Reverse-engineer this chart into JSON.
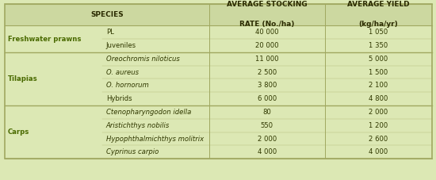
{
  "bg_color": "#dce8b4",
  "header_bg": "#ccd8a0",
  "border_color": "#a0a860",
  "header_text_color": "#2a2a00",
  "group_text_color": "#4a6a00",
  "body_text_color": "#303800",
  "headers_line1": [
    "SPECIES",
    "AVERAGE STOCKING",
    "AVERAGE YIELD"
  ],
  "headers_line2": [
    "",
    "RATE (No./ha)",
    "(kg/ha/yr)"
  ],
  "groups": [
    {
      "name": "Freshwater prawns",
      "rows": [
        {
          "species": "PL",
          "italic": false,
          "stocking": "40 000",
          "yield": "1 050"
        },
        {
          "species": "Juveniles",
          "italic": false,
          "stocking": "20 000",
          "yield": "1 350"
        }
      ]
    },
    {
      "name": "Tilapias",
      "rows": [
        {
          "species": "Oreochromis niloticus",
          "italic": true,
          "stocking": "11 000",
          "yield": "5 000"
        },
        {
          "species": "O. aureus",
          "italic": true,
          "stocking": "2 500",
          "yield": "1 500"
        },
        {
          "species": "O. hornorum",
          "italic": true,
          "stocking": "3 800",
          "yield": "2 100"
        },
        {
          "species": "Hybrids",
          "italic": false,
          "stocking": "6 000",
          "yield": "4 800"
        }
      ]
    },
    {
      "name": "Carps",
      "rows": [
        {
          "species": "Ctenopharyngodon idella",
          "italic": true,
          "stocking": "80",
          "yield": "2 000"
        },
        {
          "species": "Aristichthys nobilis",
          "italic": true,
          "stocking": "550",
          "yield": "1 200"
        },
        {
          "species": "Hypophthalmichthys molitrix",
          "italic": true,
          "stocking": "2 000",
          "yield": "2 600"
        },
        {
          "species": "Cyprinus carpio",
          "italic": true,
          "stocking": "4 000",
          "yield": "4 000"
        }
      ]
    }
  ]
}
